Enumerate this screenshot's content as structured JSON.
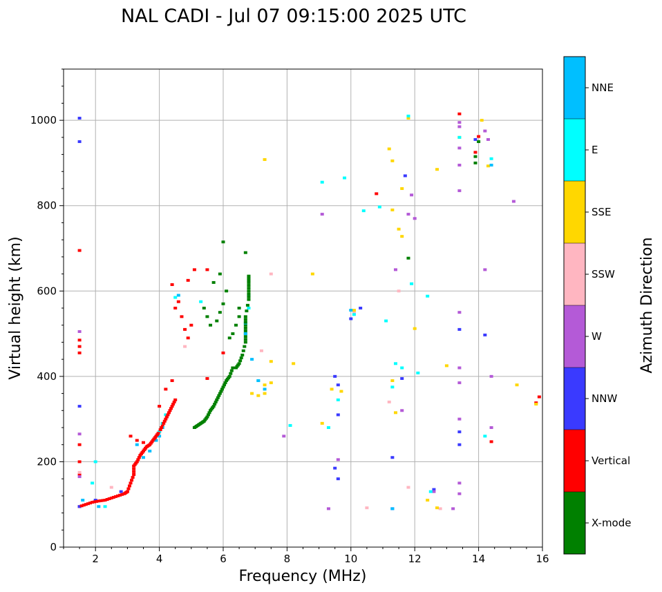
{
  "chart_data": {
    "type": "scatter",
    "title": "NAL CADI - Jul 07 09:15:00 2025 UTC",
    "xlabel": "Frequency (MHz)",
    "ylabel": "Virtual height (km)",
    "xlim": [
      1,
      16
    ],
    "ylim": [
      0,
      1120
    ],
    "xticks": [
      2,
      4,
      6,
      8,
      10,
      12,
      14,
      16
    ],
    "yticks": [
      0,
      200,
      400,
      600,
      800,
      1000
    ],
    "grid": true,
    "colorbar": {
      "label": "Azimuth Direction",
      "categories": [
        {
          "name": "X-mode",
          "color": "#008000"
        },
        {
          "name": "Vertical",
          "color": "#ff0000"
        },
        {
          "name": "NNW",
          "color": "#3a3aff"
        },
        {
          "name": "W",
          "color": "#b45ad7"
        },
        {
          "name": "SSW",
          "color": "#ffb6c1"
        },
        {
          "name": "SSE",
          "color": "#ffd700"
        },
        {
          "name": "E",
          "color": "#00ffff"
        },
        {
          "name": "NNE",
          "color": "#00bfff"
        }
      ]
    },
    "series": [
      {
        "name": "X-mode",
        "points": [
          [
            5.1,
            280
          ],
          [
            5.2,
            285
          ],
          [
            5.3,
            290
          ],
          [
            5.4,
            295
          ],
          [
            5.5,
            305
          ],
          [
            5.6,
            320
          ],
          [
            5.7,
            330
          ],
          [
            5.8,
            345
          ],
          [
            5.9,
            360
          ],
          [
            6.0,
            375
          ],
          [
            6.1,
            390
          ],
          [
            6.2,
            400
          ],
          [
            6.3,
            420
          ],
          [
            6.4,
            420
          ],
          [
            6.5,
            430
          ],
          [
            6.6,
            450
          ],
          [
            6.7,
            480
          ],
          [
            6.7,
            500
          ],
          [
            6.7,
            520
          ],
          [
            6.7,
            540
          ],
          [
            6.8,
            580
          ],
          [
            6.8,
            600
          ],
          [
            6.8,
            620
          ],
          [
            6.8,
            635
          ],
          [
            6.5,
            560
          ],
          [
            6.5,
            540
          ],
          [
            6.4,
            520
          ],
          [
            6.3,
            500
          ],
          [
            6.2,
            490
          ],
          [
            6.1,
            600
          ],
          [
            6.0,
            570
          ],
          [
            5.9,
            550
          ],
          [
            5.8,
            530
          ],
          [
            5.6,
            520
          ],
          [
            5.5,
            540
          ],
          [
            5.4,
            560
          ],
          [
            6.0,
            715
          ],
          [
            6.7,
            690
          ],
          [
            5.9,
            640
          ],
          [
            5.7,
            620
          ],
          [
            13.9,
            915
          ],
          [
            13.9,
            900
          ],
          [
            14.0,
            950
          ],
          [
            11.8,
            677
          ]
        ]
      },
      {
        "name": "Vertical",
        "points": [
          [
            1.5,
            95
          ],
          [
            1.7,
            100
          ],
          [
            1.9,
            105
          ],
          [
            2.1,
            108
          ],
          [
            2.3,
            110
          ],
          [
            2.5,
            115
          ],
          [
            2.7,
            120
          ],
          [
            2.9,
            125
          ],
          [
            3.0,
            130
          ],
          [
            3.1,
            150
          ],
          [
            3.2,
            170
          ],
          [
            3.2,
            190
          ],
          [
            3.3,
            200
          ],
          [
            3.4,
            215
          ],
          [
            3.5,
            225
          ],
          [
            3.6,
            235
          ],
          [
            3.7,
            240
          ],
          [
            3.8,
            250
          ],
          [
            3.9,
            260
          ],
          [
            4.0,
            270
          ],
          [
            4.1,
            285
          ],
          [
            4.2,
            300
          ],
          [
            4.3,
            315
          ],
          [
            4.4,
            330
          ],
          [
            4.5,
            345
          ],
          [
            4.0,
            330
          ],
          [
            4.2,
            370
          ],
          [
            4.4,
            390
          ],
          [
            4.5,
            560
          ],
          [
            4.6,
            575
          ],
          [
            4.7,
            540
          ],
          [
            4.8,
            510
          ],
          [
            4.9,
            490
          ],
          [
            5.0,
            520
          ],
          [
            4.4,
            615
          ],
          [
            4.9,
            625
          ],
          [
            5.1,
            650
          ],
          [
            5.5,
            650
          ],
          [
            6.0,
            455
          ],
          [
            5.5,
            395
          ],
          [
            1.5,
            240
          ],
          [
            1.5,
            200
          ],
          [
            1.5,
            170
          ],
          [
            1.5,
            455
          ],
          [
            1.5,
            470
          ],
          [
            1.5,
            485
          ],
          [
            1.5,
            695
          ],
          [
            3.1,
            260
          ],
          [
            3.3,
            250
          ],
          [
            3.5,
            245
          ],
          [
            10.8,
            828
          ],
          [
            13.4,
            1015
          ],
          [
            14.0,
            962
          ],
          [
            15.8,
            338
          ],
          [
            15.9,
            352
          ],
          [
            14.4,
            247
          ],
          [
            13.9,
            925
          ]
        ]
      },
      {
        "name": "NNW",
        "points": [
          [
            1.5,
            1005
          ],
          [
            1.5,
            950
          ],
          [
            1.5,
            330
          ],
          [
            1.5,
            95
          ],
          [
            2.0,
            110
          ],
          [
            2.8,
            130
          ],
          [
            9.5,
            400
          ],
          [
            9.6,
            380
          ],
          [
            9.6,
            310
          ],
          [
            9.5,
            185
          ],
          [
            9.6,
            160
          ],
          [
            11.3,
            210
          ],
          [
            11.3,
            90
          ],
          [
            11.6,
            395
          ],
          [
            11.7,
            870
          ],
          [
            13.4,
            510
          ],
          [
            13.4,
            270
          ],
          [
            13.4,
            240
          ],
          [
            14.2,
            497
          ],
          [
            10.3,
            560
          ],
          [
            10.0,
            535
          ],
          [
            12.6,
            135
          ],
          [
            13.9,
            955
          ]
        ]
      },
      {
        "name": "W",
        "points": [
          [
            1.5,
            505
          ],
          [
            1.5,
            265
          ],
          [
            1.5,
            165
          ],
          [
            9.1,
            780
          ],
          [
            9.6,
            205
          ],
          [
            9.3,
            90
          ],
          [
            11.4,
            650
          ],
          [
            11.6,
            320
          ],
          [
            11.8,
            780
          ],
          [
            12.0,
            770
          ],
          [
            11.9,
            825
          ],
          [
            13.4,
            995
          ],
          [
            13.4,
            985
          ],
          [
            13.4,
            935
          ],
          [
            13.4,
            895
          ],
          [
            13.4,
            835
          ],
          [
            13.4,
            550
          ],
          [
            13.4,
            420
          ],
          [
            13.4,
            385
          ],
          [
            13.4,
            300
          ],
          [
            13.4,
            150
          ],
          [
            13.4,
            125
          ],
          [
            13.2,
            90
          ],
          [
            14.2,
            975
          ],
          [
            14.3,
            955
          ],
          [
            14.2,
            650
          ],
          [
            14.4,
            400
          ],
          [
            14.4,
            280
          ],
          [
            15.1,
            810
          ],
          [
            7.9,
            260
          ],
          [
            12.6,
            130
          ]
        ]
      },
      {
        "name": "SSW",
        "points": [
          [
            1.5,
            175
          ],
          [
            2.5,
            140
          ],
          [
            4.8,
            470
          ],
          [
            7.2,
            460
          ],
          [
            7.5,
            640
          ],
          [
            10.5,
            92
          ],
          [
            11.2,
            340
          ],
          [
            11.5,
            600
          ],
          [
            11.8,
            140
          ],
          [
            10.1,
            550
          ],
          [
            12.8,
            90
          ]
        ]
      },
      {
        "name": "SSE",
        "points": [
          [
            6.9,
            360
          ],
          [
            7.1,
            355
          ],
          [
            7.3,
            360
          ],
          [
            7.3,
            380
          ],
          [
            7.5,
            435
          ],
          [
            7.5,
            385
          ],
          [
            7.3,
            908
          ],
          [
            8.2,
            430
          ],
          [
            8.8,
            640
          ],
          [
            9.1,
            290
          ],
          [
            9.4,
            370
          ],
          [
            9.7,
            365
          ],
          [
            10.1,
            555
          ],
          [
            11.2,
            933
          ],
          [
            11.3,
            905
          ],
          [
            11.4,
            315
          ],
          [
            11.6,
            840
          ],
          [
            11.6,
            728
          ],
          [
            11.5,
            745
          ],
          [
            11.3,
            790
          ],
          [
            11.8,
            1005
          ],
          [
            12.0,
            512
          ],
          [
            12.4,
            110
          ],
          [
            12.7,
            885
          ],
          [
            12.7,
            92
          ],
          [
            13.0,
            425
          ],
          [
            13.4,
            960
          ],
          [
            14.1,
            1000
          ],
          [
            14.3,
            893
          ],
          [
            15.2,
            380
          ],
          [
            15.8,
            335
          ],
          [
            11.3,
            390
          ]
        ]
      },
      {
        "name": "E",
        "points": [
          [
            1.9,
            150
          ],
          [
            2.0,
            200
          ],
          [
            2.3,
            95
          ],
          [
            4.0,
            270
          ],
          [
            4.1,
            290
          ],
          [
            4.2,
            310
          ],
          [
            4.5,
            585
          ],
          [
            5.3,
            575
          ],
          [
            6.8,
            560
          ],
          [
            7.1,
            390
          ],
          [
            8.1,
            285
          ],
          [
            9.1,
            855
          ],
          [
            9.3,
            280
          ],
          [
            9.6,
            345
          ],
          [
            9.8,
            865
          ],
          [
            10.1,
            545
          ],
          [
            10.4,
            788
          ],
          [
            10.9,
            797
          ],
          [
            11.1,
            530
          ],
          [
            11.3,
            375
          ],
          [
            11.4,
            430
          ],
          [
            11.6,
            420
          ],
          [
            11.8,
            1010
          ],
          [
            11.9,
            617
          ],
          [
            12.1,
            408
          ],
          [
            12.4,
            588
          ],
          [
            13.4,
            960
          ],
          [
            14.2,
            260
          ],
          [
            14.4,
            910
          ],
          [
            12.5,
            130
          ]
        ]
      },
      {
        "name": "NNE",
        "points": [
          [
            1.6,
            110
          ],
          [
            2.1,
            95
          ],
          [
            3.3,
            240
          ],
          [
            3.5,
            210
          ],
          [
            3.7,
            225
          ],
          [
            3.9,
            250
          ],
          [
            4.0,
            260
          ],
          [
            4.1,
            280
          ],
          [
            4.6,
            590
          ],
          [
            6.7,
            525
          ],
          [
            6.7,
            500
          ],
          [
            6.8,
            590
          ],
          [
            6.9,
            440
          ],
          [
            7.1,
            390
          ],
          [
            7.3,
            370
          ],
          [
            10.0,
            555
          ],
          [
            11.3,
            90
          ],
          [
            14.4,
            895
          ]
        ]
      }
    ]
  }
}
